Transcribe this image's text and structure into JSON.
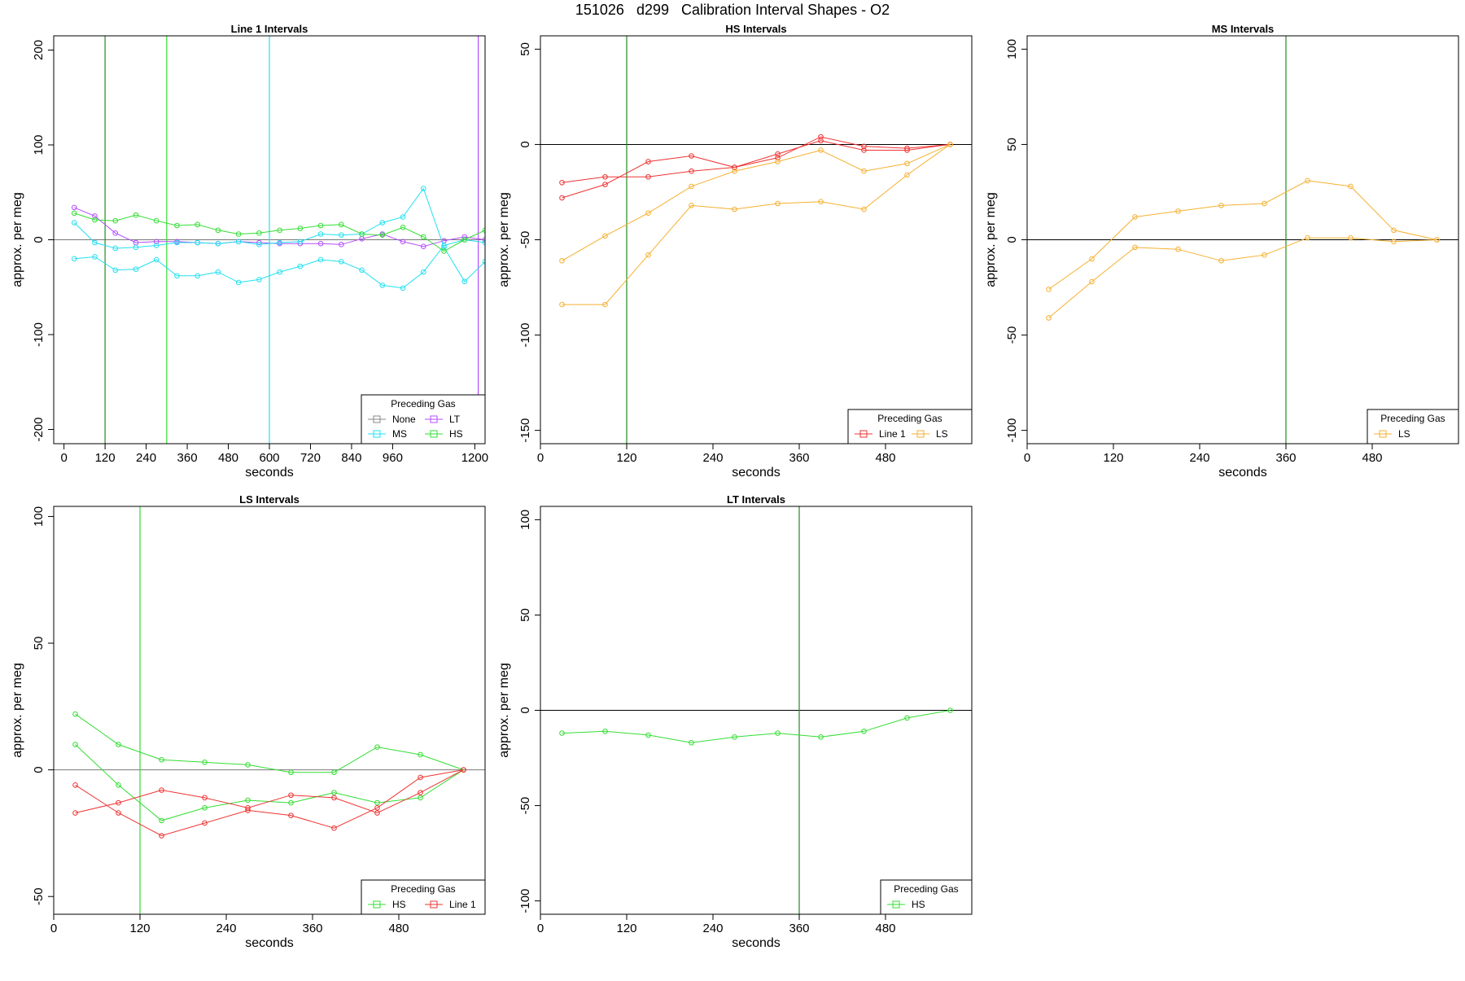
{
  "page": {
    "title": "151026   d299   Calibration Interval Shapes - O2"
  },
  "colors": {
    "None": "#888888",
    "LT": "#b44cff",
    "MS": "#22e0f0",
    "HS": "#33dd33",
    "Line 1": "#ee3333",
    "LS": "#f5b030",
    "vline_green": "#228b22",
    "vline_bright_green": "#33dd33",
    "vline_cyan": "#22e0f0",
    "vline_purple": "#b44cff"
  },
  "chart_data": [
    {
      "type": "line",
      "title": "Line 1 Intervals",
      "xlabel": "seconds",
      "ylabel": "approx. per meg",
      "xlim": [
        -30,
        1230
      ],
      "ylim": [
        -215,
        215
      ],
      "xticks": [
        0,
        120,
        240,
        360,
        480,
        600,
        720,
        840,
        960,
        1200
      ],
      "yticks": [
        -200,
        -100,
        0,
        100,
        200
      ],
      "hline": 0,
      "hline_style": "gray",
      "vlines": [
        {
          "x": 120,
          "color": "vline_green"
        },
        {
          "x": 300,
          "color": "vline_bright_green"
        },
        {
          "x": 600,
          "color": "vline_cyan"
        },
        {
          "x": 1210,
          "color": "vline_purple"
        }
      ],
      "legend": {
        "title": "Preceding Gas",
        "position": "bottom-right",
        "columns": 2,
        "entries": [
          "None",
          "LT",
          "MS",
          "HS"
        ]
      },
      "series": [
        {
          "name": "LT",
          "x": [
            30,
            90,
            150,
            210,
            270,
            330,
            390,
            450,
            510,
            570,
            630,
            690,
            750,
            810,
            870,
            930,
            990,
            1050,
            1110,
            1170,
            1230
          ],
          "values": [
            34,
            25,
            7,
            -3,
            -2,
            -2,
            -3,
            -4,
            -2,
            -3,
            -4,
            -4,
            -4,
            -5,
            1,
            6,
            -2,
            -7,
            -1,
            3,
            0
          ]
        },
        {
          "name": "MS",
          "x": [
            30,
            90,
            150,
            210,
            270,
            330,
            390,
            450,
            510,
            570,
            630,
            690,
            750,
            810,
            870,
            930,
            990,
            1050,
            1110,
            1170,
            1230
          ],
          "values": [
            18,
            -3,
            -9,
            -8,
            -6,
            -3,
            -3,
            -4,
            -2,
            -5,
            -3,
            -2,
            6,
            5,
            6,
            18,
            24,
            54,
            -8,
            -44,
            -23
          ]
        },
        {
          "name": "MS",
          "x": [
            30,
            90,
            150,
            210,
            270,
            330,
            390,
            450,
            510,
            570,
            630,
            690,
            750,
            810,
            870,
            930,
            990,
            1050,
            1110,
            1170,
            1230
          ],
          "values": [
            -20,
            -18,
            -32,
            -31,
            -21,
            -38,
            -38,
            -34,
            -45,
            -42,
            -34,
            -28,
            -21,
            -23,
            -32,
            -48,
            -51,
            -34,
            -6,
            0,
            -3
          ]
        },
        {
          "name": "HS",
          "x": [
            30,
            90,
            150,
            210,
            270,
            330,
            390,
            450,
            510,
            570,
            630,
            690,
            750,
            810,
            870,
            930,
            990,
            1050,
            1110,
            1170,
            1230
          ],
          "values": [
            28,
            21,
            20,
            26,
            20,
            15,
            16,
            10,
            6,
            7,
            10,
            12,
            15,
            16,
            6,
            5,
            13,
            3,
            -12,
            0,
            10
          ]
        }
      ]
    },
    {
      "type": "line",
      "title": "HS Intervals",
      "xlabel": "seconds",
      "ylabel": "approx. per meg",
      "xlim": [
        0,
        600
      ],
      "ylim": [
        -157,
        57
      ],
      "xticks": [
        0,
        120,
        240,
        360,
        480
      ],
      "yticks": [
        -150,
        -100,
        -50,
        0,
        50
      ],
      "hline": 0,
      "hline_style": "black",
      "vlines": [
        {
          "x": 120,
          "color": "vline_green"
        }
      ],
      "legend": {
        "title": "Preceding Gas",
        "position": "bottom-right",
        "columns": 2,
        "entries": [
          "Line 1",
          "LS"
        ]
      },
      "series": [
        {
          "name": "Line 1",
          "x": [
            30,
            90,
            150,
            210,
            270,
            330,
            390,
            450,
            510,
            570
          ],
          "values": [
            -20,
            -17,
            -17,
            -14,
            -12,
            -7,
            4,
            -1,
            -2,
            0
          ]
        },
        {
          "name": "Line 1",
          "x": [
            30,
            90,
            150,
            210,
            270,
            330,
            390,
            450,
            510,
            570
          ],
          "values": [
            -28,
            -21,
            -9,
            -6,
            -12,
            -5,
            2,
            -3,
            -3,
            0
          ]
        },
        {
          "name": "LS",
          "x": [
            30,
            90,
            150,
            210,
            270,
            330,
            390,
            450,
            510,
            570
          ],
          "values": [
            -61,
            -48,
            -36,
            -22,
            -14,
            -9,
            -3,
            -14,
            -10,
            0
          ]
        },
        {
          "name": "LS",
          "x": [
            30,
            90,
            150,
            210,
            270,
            330,
            390,
            450,
            510,
            570
          ],
          "values": [
            -84,
            -84,
            -58,
            -32,
            -34,
            -31,
            -30,
            -34,
            -16,
            0
          ]
        }
      ]
    },
    {
      "type": "line",
      "title": "MS Intervals",
      "xlabel": "seconds",
      "ylabel": "approx. per meg",
      "xlim": [
        0,
        600
      ],
      "ylim": [
        -107,
        107
      ],
      "xticks": [
        0,
        120,
        240,
        360,
        480
      ],
      "yticks": [
        -100,
        -50,
        0,
        50,
        100
      ],
      "hline": 0,
      "hline_style": "black",
      "vlines": [
        {
          "x": 360,
          "color": "vline_green"
        }
      ],
      "legend": {
        "title": "Preceding Gas",
        "position": "bottom-right",
        "columns": 1,
        "entries": [
          "LS"
        ]
      },
      "series": [
        {
          "name": "LS",
          "x": [
            30,
            90,
            150,
            210,
            270,
            330,
            390,
            450,
            510,
            570
          ],
          "values": [
            -26,
            -10,
            12,
            15,
            18,
            19,
            31,
            28,
            5,
            0
          ]
        },
        {
          "name": "LS",
          "x": [
            30,
            90,
            150,
            210,
            270,
            330,
            390,
            450,
            510,
            570
          ],
          "values": [
            -41,
            -22,
            -4,
            -5,
            -11,
            -8,
            1,
            1,
            -1,
            0
          ]
        }
      ]
    },
    {
      "type": "line",
      "title": "LS Intervals",
      "xlabel": "seconds",
      "ylabel": "approx. per meg",
      "xlim": [
        0,
        600
      ],
      "ylim": [
        -57,
        104
      ],
      "xticks": [
        0,
        120,
        240,
        360,
        480
      ],
      "yticks": [
        -50,
        0,
        50,
        100
      ],
      "hline": 0,
      "hline_style": "gray",
      "vlines": [
        {
          "x": 120,
          "color": "vline_bright_green"
        }
      ],
      "legend": {
        "title": "Preceding Gas",
        "position": "bottom-right",
        "columns": 2,
        "entries": [
          "HS",
          "Line 1"
        ]
      },
      "series": [
        {
          "name": "HS",
          "x": [
            30,
            90,
            150,
            210,
            270,
            330,
            390,
            450,
            510,
            570
          ],
          "values": [
            22,
            10,
            4,
            3,
            2,
            -1,
            -1,
            9,
            6,
            0
          ]
        },
        {
          "name": "HS",
          "x": [
            30,
            90,
            150,
            210,
            270,
            330,
            390,
            450,
            510,
            570
          ],
          "values": [
            10,
            -6,
            -20,
            -15,
            -12,
            -13,
            -9,
            -13,
            -11,
            0
          ]
        },
        {
          "name": "Line 1",
          "x": [
            30,
            90,
            150,
            210,
            270,
            330,
            390,
            450,
            510,
            570
          ],
          "values": [
            -6,
            -17,
            -26,
            -21,
            -16,
            -18,
            -23,
            -15,
            -3,
            0
          ]
        },
        {
          "name": "Line 1",
          "x": [
            30,
            90,
            150,
            210,
            270,
            330,
            390,
            450,
            510,
            570
          ],
          "values": [
            -17,
            -13,
            -8,
            -11,
            -15,
            -10,
            -11,
            -17,
            -9,
            0
          ]
        }
      ]
    },
    {
      "type": "line",
      "title": "LT Intervals",
      "xlabel": "seconds",
      "ylabel": "approx. per meg",
      "xlim": [
        0,
        600
      ],
      "ylim": [
        -107,
        107
      ],
      "xticks": [
        0,
        120,
        240,
        360,
        480
      ],
      "yticks": [
        -100,
        -50,
        0,
        50,
        100
      ],
      "hline": 0,
      "hline_style": "black",
      "vlines": [
        {
          "x": 360,
          "color": "vline_green"
        }
      ],
      "legend": {
        "title": "Preceding Gas",
        "position": "bottom-right",
        "columns": 1,
        "entries": [
          "HS"
        ]
      },
      "series": [
        {
          "name": "HS",
          "x": [
            30,
            90,
            150,
            210,
            270,
            330,
            390,
            450,
            510,
            570
          ],
          "values": [
            -12,
            -11,
            -13,
            -17,
            -14,
            -12,
            -14,
            -11,
            -4,
            0
          ]
        }
      ]
    }
  ]
}
